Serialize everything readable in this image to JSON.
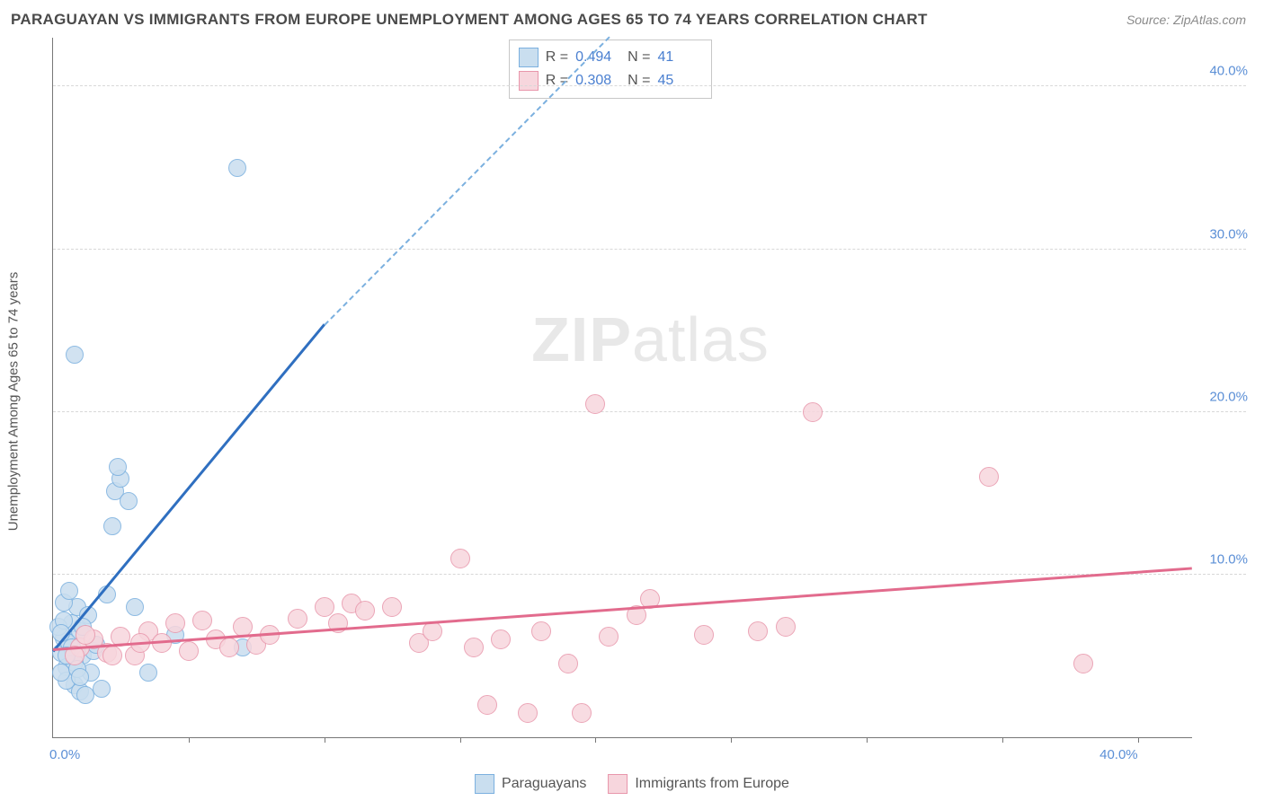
{
  "title": "PARAGUAYAN VS IMMIGRANTS FROM EUROPE UNEMPLOYMENT AMONG AGES 65 TO 74 YEARS CORRELATION CHART",
  "source": "Source: ZipAtlas.com",
  "y_axis_label": "Unemployment Among Ages 65 to 74 years",
  "watermark": {
    "prefix": "ZIP",
    "suffix": "atlas"
  },
  "axes": {
    "xmin": 0,
    "xmax": 42,
    "ymin": 0,
    "ymax": 43,
    "xticks_minor": [
      5,
      10,
      15,
      20,
      25,
      30,
      35,
      40
    ],
    "x_labels": [
      {
        "v": 0,
        "t": "0.0%",
        "anchor": "start"
      },
      {
        "v": 40,
        "t": "40.0%",
        "anchor": "end"
      }
    ],
    "y_gridlines": [
      10,
      20,
      30,
      40
    ],
    "y_labels": [
      {
        "v": 10,
        "t": "10.0%"
      },
      {
        "v": 20,
        "t": "20.0%"
      },
      {
        "v": 30,
        "t": "30.0%"
      },
      {
        "v": 40,
        "t": "40.0%"
      }
    ]
  },
  "series": [
    {
      "key": "paraguayans",
      "label": "Paraguayans",
      "fill": "#c9deef",
      "stroke": "#7bb0df",
      "line_color": "#2f6fc0",
      "marker_r": 9,
      "trend": {
        "x1": 0,
        "y1": 5.2,
        "x2": 10,
        "y2": 25.3,
        "dash_to_x": 20.5,
        "dash_to_y": 46
      },
      "stats": {
        "R": "0.494",
        "N": "41"
      },
      "points": [
        [
          0.3,
          5.2
        ],
        [
          0.4,
          6.1
        ],
        [
          0.5,
          4.3
        ],
        [
          0.6,
          5.8
        ],
        [
          0.7,
          7.0
        ],
        [
          0.8,
          3.2
        ],
        [
          0.9,
          8.0
        ],
        [
          0.4,
          8.3
        ],
        [
          1.0,
          6.5
        ],
        [
          1.1,
          5.0
        ],
        [
          0.2,
          6.8
        ],
        [
          1.3,
          7.5
        ],
        [
          1.4,
          4.0
        ],
        [
          1.5,
          5.3
        ],
        [
          0.6,
          9.0
        ],
        [
          1.8,
          3.0
        ],
        [
          1.0,
          2.8
        ],
        [
          1.2,
          2.6
        ],
        [
          0.5,
          3.5
        ],
        [
          0.8,
          4.6
        ],
        [
          0.3,
          4.0
        ],
        [
          2.0,
          8.8
        ],
        [
          2.2,
          13.0
        ],
        [
          2.3,
          15.1
        ],
        [
          2.5,
          15.9
        ],
        [
          2.4,
          16.6
        ],
        [
          2.8,
          14.5
        ],
        [
          3.0,
          8.0
        ],
        [
          3.5,
          4.0
        ],
        [
          7.0,
          5.5
        ],
        [
          4.5,
          6.3
        ],
        [
          0.8,
          23.5
        ],
        [
          6.8,
          35.0
        ],
        [
          0.7,
          5.5
        ],
        [
          1.1,
          6.8
        ],
        [
          0.4,
          7.2
        ],
        [
          0.5,
          5.0
        ],
        [
          0.9,
          4.2
        ],
        [
          1.6,
          5.7
        ],
        [
          0.3,
          6.4
        ],
        [
          1.0,
          3.7
        ]
      ]
    },
    {
      "key": "europe",
      "label": "Immigrants from Europe",
      "fill": "#f7d6dd",
      "stroke": "#e896ab",
      "line_color": "#e26b8d",
      "marker_r": 10,
      "trend": {
        "x1": 0,
        "y1": 5.3,
        "x2": 42,
        "y2": 10.3
      },
      "stats": {
        "R": "0.308",
        "N": "45"
      },
      "points": [
        [
          1.0,
          5.5
        ],
        [
          1.5,
          6.0
        ],
        [
          2.0,
          5.2
        ],
        [
          2.5,
          6.2
        ],
        [
          3.0,
          5.0
        ],
        [
          3.5,
          6.5
        ],
        [
          4.0,
          5.8
        ],
        [
          4.5,
          7.0
        ],
        [
          5.0,
          5.3
        ],
        [
          5.5,
          7.2
        ],
        [
          6.0,
          6.0
        ],
        [
          6.5,
          5.5
        ],
        [
          7.0,
          6.8
        ],
        [
          7.5,
          5.7
        ],
        [
          8.0,
          6.3
        ],
        [
          9.0,
          7.3
        ],
        [
          10.0,
          8.0
        ],
        [
          10.5,
          7.0
        ],
        [
          11.0,
          8.2
        ],
        [
          11.5,
          7.8
        ],
        [
          12.5,
          8.0
        ],
        [
          13.5,
          5.8
        ],
        [
          14.0,
          6.5
        ],
        [
          15.0,
          11.0
        ],
        [
          15.5,
          5.5
        ],
        [
          16.0,
          2.0
        ],
        [
          16.5,
          6.0
        ],
        [
          17.5,
          1.5
        ],
        [
          18.0,
          6.5
        ],
        [
          19.0,
          4.5
        ],
        [
          19.5,
          1.5
        ],
        [
          20.0,
          20.5
        ],
        [
          20.5,
          6.2
        ],
        [
          21.5,
          7.5
        ],
        [
          22.0,
          8.5
        ],
        [
          24.0,
          6.3
        ],
        [
          26.0,
          6.5
        ],
        [
          27.0,
          6.8
        ],
        [
          28.0,
          20.0
        ],
        [
          34.5,
          16.0
        ],
        [
          38.0,
          4.5
        ],
        [
          2.2,
          5.0
        ],
        [
          3.2,
          5.8
        ],
        [
          1.2,
          6.3
        ],
        [
          0.8,
          5.0
        ]
      ]
    }
  ],
  "colors": {
    "grid": "#d8d8d8",
    "axis": "#777777",
    "tick_label": "#5b8fd6",
    "title": "#4a4a4a"
  }
}
